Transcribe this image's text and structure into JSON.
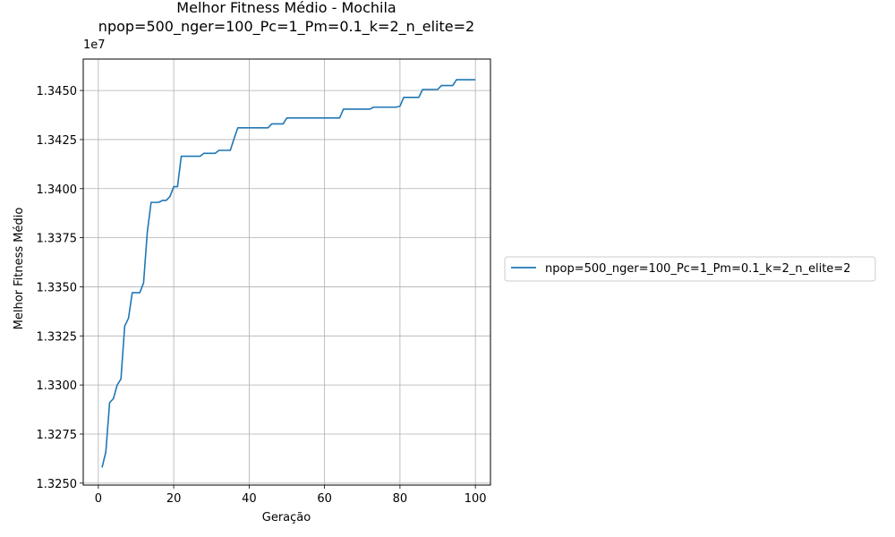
{
  "chart_data": {
    "type": "line",
    "title": "Melhor Fitness Médio - Mochila",
    "subtitle": "npop=500_nger=100_Pc=1_Pm=0.1_k=2_n_elite=2",
    "xlabel": "Geração",
    "ylabel": "Melhor Fitness Médio",
    "y_offset_label": "1e7",
    "xlim": [
      -4,
      104
    ],
    "ylim": [
      13249000,
      13466000
    ],
    "x_ticks": [
      0,
      20,
      40,
      60,
      80,
      100
    ],
    "x_tick_labels": [
      "0",
      "20",
      "40",
      "60",
      "80",
      "100"
    ],
    "y_ticks": [
      13250000,
      13275000,
      13300000,
      13325000,
      13350000,
      13375000,
      13400000,
      13425000,
      13450000
    ],
    "y_tick_labels": [
      "1.3250",
      "1.3275",
      "1.3300",
      "1.3325",
      "1.3350",
      "1.3375",
      "1.3400",
      "1.3425",
      "1.3450"
    ],
    "grid": true,
    "legend_position": "right, outside plot",
    "series": [
      {
        "name": "npop=500_nger=100_Pc=1_Pm=0.1_k=2_n_elite=2",
        "color": "#1f77b4",
        "x": [
          1,
          2,
          3,
          4,
          5,
          6,
          7,
          8,
          9,
          10,
          11,
          12,
          13,
          14,
          15,
          16,
          17,
          18,
          19,
          20,
          21,
          22,
          23,
          24,
          25,
          26,
          27,
          28,
          29,
          30,
          31,
          32,
          33,
          34,
          35,
          36,
          37,
          38,
          39,
          40,
          41,
          42,
          43,
          44,
          45,
          46,
          47,
          48,
          49,
          50,
          51,
          52,
          53,
          54,
          55,
          56,
          57,
          58,
          59,
          60,
          61,
          62,
          63,
          64,
          65,
          66,
          67,
          68,
          69,
          70,
          71,
          72,
          73,
          74,
          75,
          76,
          77,
          78,
          79,
          80,
          81,
          82,
          83,
          84,
          85,
          86,
          87,
          88,
          89,
          90,
          91,
          92,
          93,
          94,
          95,
          96,
          97,
          98,
          99,
          100
        ],
        "values": [
          13258000,
          13266000,
          13291000,
          13293000,
          13300000,
          13303000,
          13330000,
          13334000,
          13347000,
          13347000,
          13347000,
          13352000,
          13378000,
          13393000,
          13393000,
          13393000,
          13394000,
          13394000,
          13396000,
          13401000,
          13401000,
          13416500,
          13416500,
          13416500,
          13416500,
          13416500,
          13416500,
          13418000,
          13418000,
          13418000,
          13418000,
          13419500,
          13419500,
          13419500,
          13419500,
          13425500,
          13431000,
          13431000,
          13431000,
          13431000,
          13431000,
          13431000,
          13431000,
          13431000,
          13431000,
          13433000,
          13433000,
          13433000,
          13433000,
          13436000,
          13436000,
          13436000,
          13436000,
          13436000,
          13436000,
          13436000,
          13436000,
          13436000,
          13436000,
          13436000,
          13436000,
          13436000,
          13436000,
          13436000,
          13440500,
          13440500,
          13440500,
          13440500,
          13440500,
          13440500,
          13440500,
          13440500,
          13441500,
          13441500,
          13441500,
          13441500,
          13441500,
          13441500,
          13441500,
          13442000,
          13446500,
          13446500,
          13446500,
          13446500,
          13446500,
          13450500,
          13450500,
          13450500,
          13450500,
          13450500,
          13452500,
          13452500,
          13452500,
          13452500,
          13455500,
          13455500,
          13455500,
          13455500,
          13455500,
          13455500
        ]
      }
    ]
  }
}
